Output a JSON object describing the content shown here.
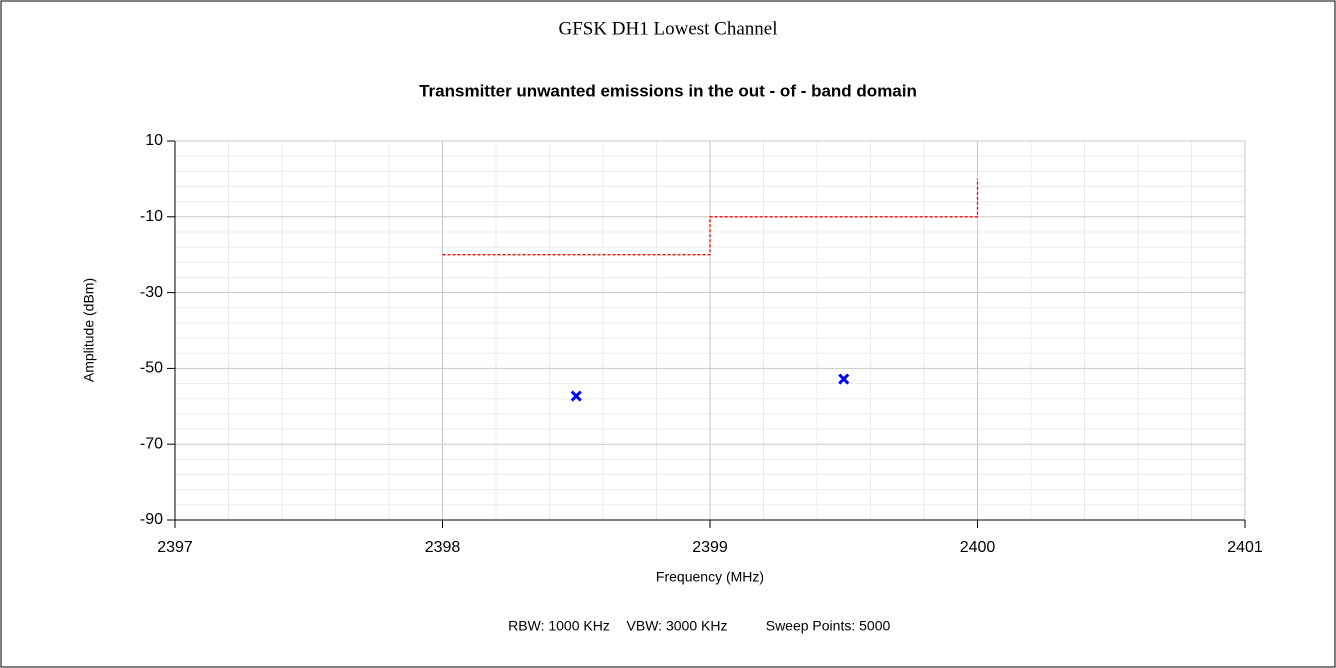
{
  "page_title": "GFSK DH1 Lowest Channel",
  "chart_data": {
    "type": "line",
    "title": "Transmitter unwanted emissions in the out - of - band domain",
    "x_label": "Frequency (MHz)",
    "y_label": "Amplitude (dBm)",
    "xlim": [
      2397,
      2401
    ],
    "xticks": [
      2397,
      2398,
      2399,
      2400,
      2401
    ],
    "ylim": [
      -90,
      10
    ],
    "yticks": [
      10,
      -10,
      -30,
      -50,
      -70,
      -90
    ],
    "grid": true,
    "minor_grid": true,
    "series": [
      {
        "type": "line",
        "color": "#ff0000",
        "dashed": true,
        "x": [
          2398,
          2399,
          2399,
          2400,
          2400
        ],
        "values": [
          -20,
          -20,
          -10,
          -10,
          0
        ]
      },
      {
        "type": "scatter",
        "color": "#0000ff",
        "marker": "x",
        "x": [
          2398.5,
          2399.5
        ],
        "values": [
          -57.3,
          -52.8
        ]
      }
    ],
    "annotations": [
      "RBW: 1000 KHz",
      "VBW: 3000 KHz",
      "Sweep Points: 5000"
    ]
  }
}
